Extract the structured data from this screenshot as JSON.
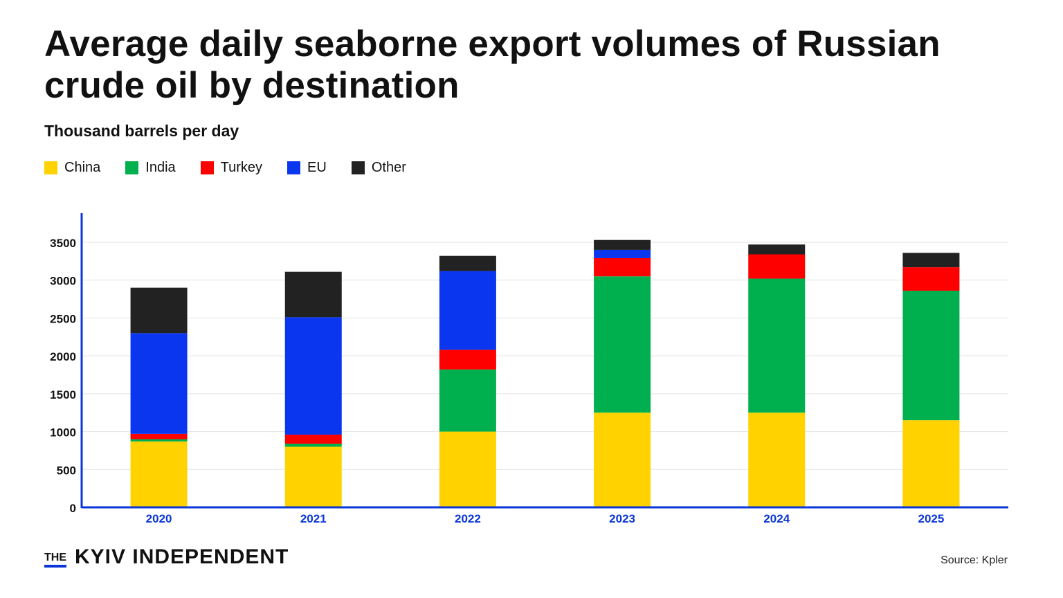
{
  "header": {
    "title": "Average daily seaborne export volumes of Russian crude oil by destination",
    "subtitle": "Thousand barrels per day"
  },
  "footer": {
    "brand_prefix": "THE",
    "brand_name": "KYIV INDEPENDENT",
    "source": "Source: Kpler"
  },
  "colors": {
    "accent": "#0a36d8",
    "grid": "#e3e3e3",
    "axis_label": "#0a36d8"
  },
  "chart_data": {
    "type": "bar",
    "stacked": true,
    "title": "Average daily seaborne export volumes of Russian crude oil by destination",
    "ylabel": "Thousand barrels per day",
    "categories": [
      "2020",
      "2021",
      "2022",
      "2023",
      "2024",
      "2025"
    ],
    "ylim": [
      0,
      3500
    ],
    "yticks": [
      0,
      500,
      1000,
      1500,
      2000,
      2500,
      3000,
      3500
    ],
    "grid": true,
    "legend_position": "top-left",
    "series": [
      {
        "name": "China",
        "color": "#ffd200",
        "values": [
          870,
          800,
          1000,
          1250,
          1250,
          1150
        ]
      },
      {
        "name": "India",
        "color": "#00b04f",
        "values": [
          30,
          40,
          820,
          1800,
          1770,
          1710
        ]
      },
      {
        "name": "Turkey",
        "color": "#ff0000",
        "values": [
          70,
          120,
          260,
          240,
          320,
          310
        ]
      },
      {
        "name": "EU",
        "color": "#0a36f0",
        "values": [
          1330,
          1550,
          1040,
          110,
          0,
          0
        ]
      },
      {
        "name": "Other",
        "color": "#222222",
        "values": [
          600,
          600,
          200,
          130,
          130,
          190
        ]
      }
    ]
  }
}
